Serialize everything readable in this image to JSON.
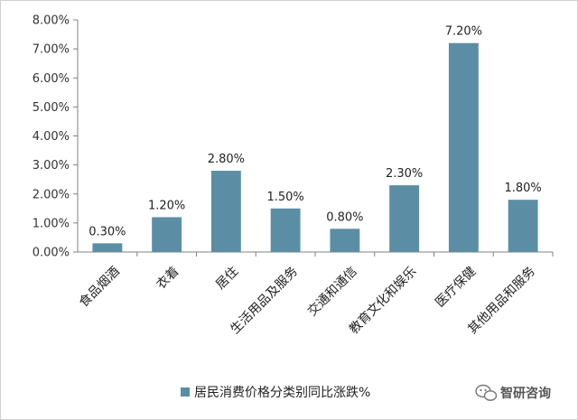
{
  "chart_data": {
    "type": "bar",
    "categories": [
      "食品烟酒",
      "衣着",
      "居住",
      "生活用品及服务",
      "交通和通信",
      "教育文化和娱乐",
      "医疗保健",
      "其他用品和服务"
    ],
    "series": [
      {
        "name": "居民消费价格分类别同比涨跌%",
        "values": [
          0.3,
          1.2,
          2.8,
          1.5,
          0.8,
          2.3,
          7.2,
          1.8
        ],
        "labels": [
          "0.30%",
          "1.20%",
          "2.80%",
          "1.50%",
          "0.80%",
          "2.30%",
          "7.20%",
          "1.80%"
        ]
      }
    ],
    "ylim": [
      0,
      8
    ],
    "yticks": [
      "0.00%",
      "1.00%",
      "2.00%",
      "3.00%",
      "4.00%",
      "5.00%",
      "6.00%",
      "7.00%",
      "8.00%"
    ],
    "bar_color": "#5b8ea5",
    "grid": false,
    "legend_position": "bottom"
  },
  "watermark": {
    "text": "智研咨询",
    "icon": "wechat-icon"
  }
}
